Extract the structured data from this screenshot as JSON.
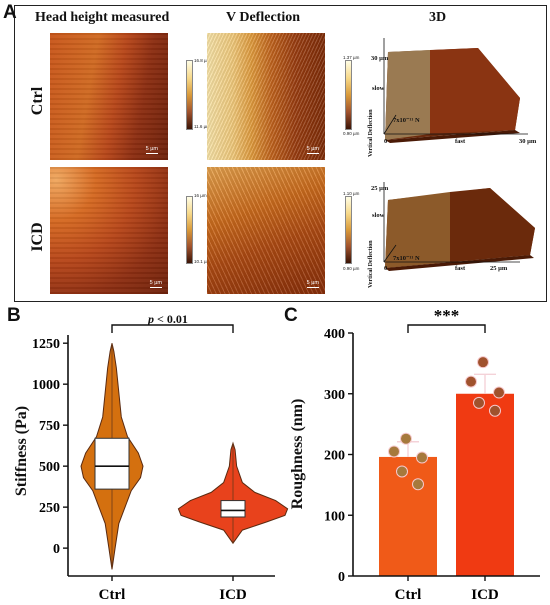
{
  "panelA": {
    "letter": "A",
    "col_titles": [
      "Head height measured",
      "V Deflection",
      "3D"
    ],
    "rows": [
      {
        "label": "Ctrl",
        "scale_bar": "5 µm",
        "height_cbar_top": "16.8 µm",
        "height_cbar_bottom": "11.6 µm",
        "defl_cbar_top": "1.37 µm",
        "defl_cbar_bottom": "0.90 µm",
        "view3d": {
          "force": "7x10⁻¹¹ N",
          "y_extent": "30 µm",
          "x_extent": "30 µm",
          "slow": "slow",
          "fast": "fast",
          "origin": "0",
          "zlabel": "Vertical Deflection"
        }
      },
      {
        "label": "ICD",
        "scale_bar": "5 µm",
        "height_cbar_top": "16 µm",
        "height_cbar_bottom": "10.1 µm",
        "defl_cbar_top": "1.10 µm",
        "defl_cbar_bottom": "0.90 µm",
        "view3d": {
          "force": "7x10⁻¹¹ N",
          "y_extent": "25 µm",
          "x_extent": "25 µm",
          "slow": "slow",
          "fast": "fast",
          "origin": "0",
          "zlabel": "Vertical Deflection"
        }
      }
    ]
  },
  "panelB": {
    "letter": "B",
    "ylabel": "Stiffness (Pa)",
    "annotation_p": "p",
    "annotation_rest": " < 0.01"
  },
  "panelC": {
    "letter": "C",
    "ylabel": "Roughness (nm)",
    "significance": "***"
  },
  "chart_data": [
    {
      "type": "violin",
      "panel": "B",
      "categories": [
        "Ctrl",
        "ICD"
      ],
      "ylabel": "Stiffness (Pa)",
      "yticks": [
        0,
        250,
        500,
        750,
        1000,
        1250
      ],
      "ylim": [
        -170,
        1300
      ],
      "series": [
        {
          "category": "Ctrl",
          "min": -130,
          "q1": 360,
          "median": 500,
          "q3": 670,
          "max": 1250,
          "color": "#d4700f",
          "density": [
            [
              -130,
              0.0
            ],
            [
              0,
              0.1
            ],
            [
              150,
              0.22
            ],
            [
              250,
              0.42
            ],
            [
              350,
              0.62
            ],
            [
              430,
              0.92
            ],
            [
              500,
              1.0
            ],
            [
              580,
              0.85
            ],
            [
              680,
              0.5
            ],
            [
              800,
              0.3
            ],
            [
              950,
              0.22
            ],
            [
              1100,
              0.14
            ],
            [
              1200,
              0.06
            ],
            [
              1250,
              0.0
            ]
          ]
        },
        {
          "category": "ICD",
          "min": 30,
          "q1": 190,
          "median": 230,
          "q3": 290,
          "max": 640,
          "color": "#e8421c",
          "density": [
            [
              30,
              0.0
            ],
            [
              110,
              0.18
            ],
            [
              160,
              0.65
            ],
            [
              200,
              1.0
            ],
            [
              240,
              1.05
            ],
            [
              290,
              0.82
            ],
            [
              340,
              0.42
            ],
            [
              400,
              0.18
            ],
            [
              500,
              0.07
            ],
            [
              600,
              0.04
            ],
            [
              640,
              0.0
            ]
          ]
        }
      ],
      "significance": "p < 0.01"
    },
    {
      "type": "bar",
      "panel": "C",
      "categories": [
        "Ctrl",
        "ICD"
      ],
      "values": [
        196,
        300
      ],
      "errors": [
        25,
        32
      ],
      "ylabel": "Roughness (nm)",
      "yticks": [
        0,
        100,
        200,
        300,
        400
      ],
      "ylim": [
        0,
        400
      ],
      "bar_colors": [
        "#f05a18",
        "#f03a12"
      ],
      "points": [
        {
          "category": "Ctrl",
          "values": [
            226,
            205,
            195,
            172,
            151
          ],
          "color": "#a6793c"
        },
        {
          "category": "ICD",
          "values": [
            352,
            320,
            302,
            285,
            272
          ],
          "color": "#a0522d"
        }
      ],
      "significance": "***"
    }
  ]
}
